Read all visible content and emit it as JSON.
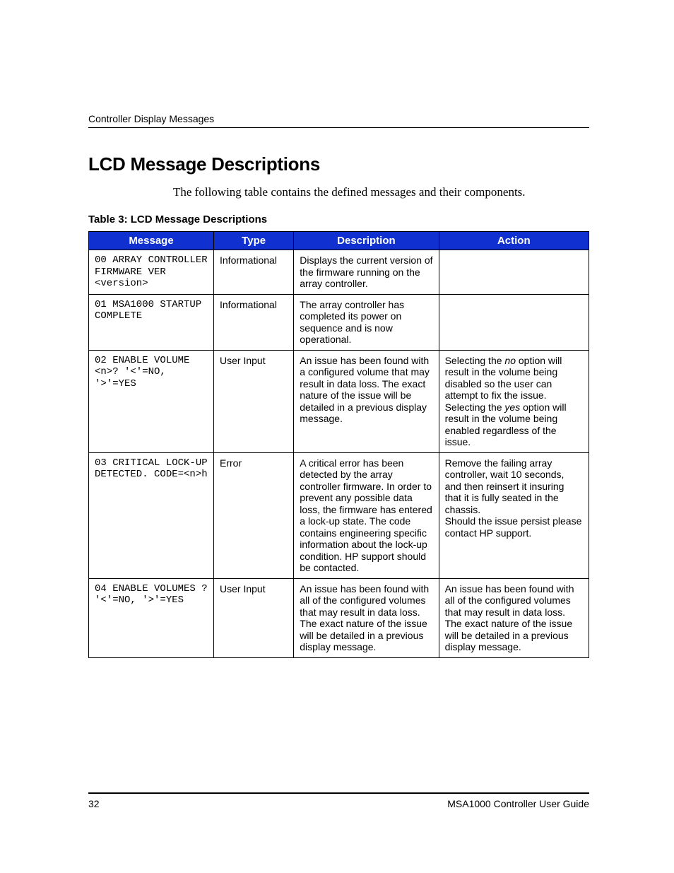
{
  "running_header": "Controller Display Messages",
  "heading": "LCD Message Descriptions",
  "intro": "The following table contains the defined messages and their components.",
  "table_caption": "Table 3:  LCD Message Descriptions",
  "columns": {
    "message": "Message",
    "type": "Type",
    "description": "Description",
    "action": "Action"
  },
  "rows": [
    {
      "message": "00 ARRAY CONTROLLER FIRMWARE VER <version>",
      "type": "Informational",
      "description": "Displays the current version of the firmware running on the array controller.",
      "action": ""
    },
    {
      "message": "01 MSA1000 STARTUP COMPLETE",
      "type": "Informational",
      "description": "The array controller has completed its power on sequence and is now operational.",
      "action": ""
    },
    {
      "message": "02 ENABLE VOLUME <n>? '<'=NO, '>'=YES",
      "type": "User Input",
      "description": "An issue has been found with a configured volume that may result in data loss. The exact nature of the issue will be detailed in a previous display message.",
      "action_pre": "Selecting the ",
      "action_it1": "no",
      "action_mid": " option will result in the volume being disabled so the user can attempt to fix the issue. Selecting the ",
      "action_it2": "yes",
      "action_post": " option will result in the volume being enabled regardless of the issue."
    },
    {
      "message": "03 CRITICAL LOCK-UP DETECTED. CODE=<n>h",
      "type": "Error",
      "description": "A critical error has been detected by the array controller firmware. In order to prevent any possible data loss, the firmware has entered a lock-up state. The code contains engineering specific information about the lock-up condition. HP support should be contacted.",
      "action_line1": "Remove the failing array controller, wait 10 seconds, and then reinsert it insuring that it is fully seated in the chassis.",
      "action_line2": "Should the issue persist please contact HP support."
    },
    {
      "message": "04 ENABLE VOLUMES ?  '<'=NO, '>'=YES",
      "type": "User Input",
      "description": "An issue has been found with all of the configured volumes that may result in data loss. The exact nature of the issue will be detailed in a previous display message.",
      "action": "An issue has been found with all of the configured volumes that may result in data loss. The exact nature of the issue will be detailed in a previous display message."
    }
  ],
  "footer": {
    "page_number": "32",
    "doc_title": "MSA1000 Controller User Guide"
  },
  "colors": {
    "header_bg": "#1030d0",
    "header_fg": "#ffffff",
    "border": "#000000"
  }
}
